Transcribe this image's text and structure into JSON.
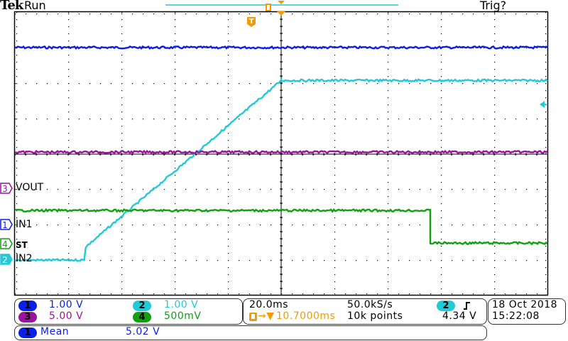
{
  "header": {
    "brand": "Tek",
    "run_state": "Run",
    "trigger_state": "Trig?"
  },
  "colors": {
    "ch1": "#0a1ee6",
    "ch2": "#22c9d6",
    "ch3": "#9b139b",
    "ch4": "#10a010",
    "trigger": "#f59a00",
    "grid": "#000000"
  },
  "channels": [
    {
      "id": "1",
      "label": "IN1",
      "scale": "1.00 V"
    },
    {
      "id": "2",
      "label": "IN2",
      "scale": "1.00 V"
    },
    {
      "id": "3",
      "label": "VOUT",
      "scale": "5.00 V"
    },
    {
      "id": "4",
      "label": "ST",
      "scale": "500mV"
    }
  ],
  "timebase": {
    "scale": "20.0ms",
    "sample_rate": "50.0kS/s",
    "trigger_delay": "10.7000ms",
    "record_length": "10k points"
  },
  "trigger": {
    "source": "2",
    "slope": "rising-edge",
    "level": "4.34 V",
    "marker": "T"
  },
  "datetime": {
    "date": "18 Oct  2018",
    "time": "15:22:08"
  },
  "measurement": {
    "channel": "1",
    "type": "Mean",
    "value": "5.02 V"
  },
  "chart_data": {
    "type": "line",
    "title": "Oscilloscope capture",
    "grid": {
      "h_divisions": 10,
      "v_divisions": 8
    },
    "x_units": "ms",
    "x_per_div": 20,
    "series": [
      {
        "name": "CH1 IN1",
        "description": "flat, noisy",
        "y_div_from_top": 1.0
      },
      {
        "name": "CH2 IN2",
        "description": "flat low, step then linear ramp to plateau at center",
        "points_div": [
          [
            0,
            7.0
          ],
          [
            1.3,
            7.0
          ],
          [
            1.33,
            6.63
          ],
          [
            5.0,
            1.93
          ],
          [
            10.0,
            1.93
          ]
        ]
      },
      {
        "name": "CH3 VOUT",
        "description": "flat, noisy",
        "y_div_from_top": 3.95
      },
      {
        "name": "CH4 ST",
        "description": "high, drops at ~7.8 div",
        "points_div": [
          [
            0,
            5.6
          ],
          [
            7.8,
            5.6
          ],
          [
            7.8,
            6.52
          ],
          [
            10,
            6.52
          ]
        ]
      }
    ]
  }
}
